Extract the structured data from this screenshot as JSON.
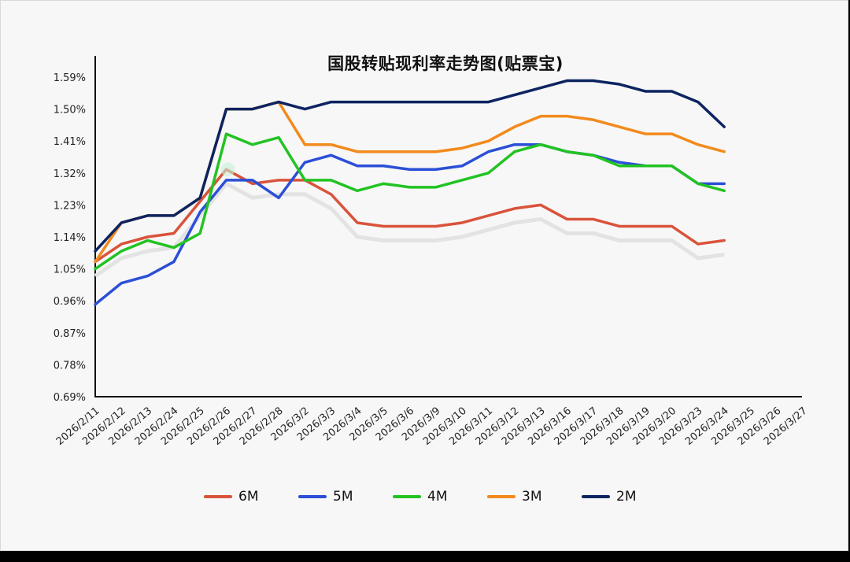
{
  "chart_data": {
    "type": "line",
    "title": "国股转贴现利率走势图(贴票宝)",
    "xlabel": "",
    "ylabel": "",
    "ylim": [
      0.69,
      1.59
    ],
    "yticks": [
      "1.59%",
      "1.50%",
      "1.41%",
      "1.32%",
      "1.23%",
      "1.14%",
      "1.05%",
      "0.96%",
      "0.87%",
      "0.78%",
      "0.69%"
    ],
    "grid": false,
    "legend_position": "bottom",
    "categories": [
      "2026/2/11",
      "2026/2/12",
      "2026/2/13",
      "2026/2/24",
      "2026/2/25",
      "2026/2/26",
      "2026/2/27",
      "2026/2/28",
      "2026/3/2",
      "2026/3/3",
      "2026/3/4",
      "2026/3/5",
      "2026/3/6",
      "2026/3/9",
      "2026/3/10",
      "2026/3/11",
      "2026/3/12",
      "2026/3/13",
      "2026/3/16",
      "2026/3/17",
      "2026/3/18",
      "2026/3/19",
      "2026/3/20",
      "2026/3/23",
      "2026/3/24",
      "2026/3/25",
      "2026/3/26",
      "2026/3/27"
    ],
    "series": [
      {
        "name": "6M",
        "color": "#d9533b",
        "values": [
          1.07,
          1.12,
          1.14,
          1.15,
          1.24,
          1.33,
          1.29,
          1.3,
          1.3,
          1.26,
          1.18,
          1.17,
          1.17,
          1.17,
          1.18,
          1.2,
          1.22,
          1.23,
          1.19,
          1.19,
          1.17,
          1.17,
          1.17,
          1.12,
          1.13,
          null,
          null,
          null
        ]
      },
      {
        "name": "5M",
        "color": "#2b4fd6",
        "values": [
          0.95,
          1.01,
          1.03,
          1.07,
          1.21,
          1.3,
          1.3,
          1.25,
          1.35,
          1.37,
          1.34,
          1.34,
          1.33,
          1.33,
          1.34,
          1.38,
          1.4,
          1.4,
          1.38,
          1.37,
          1.35,
          1.34,
          1.34,
          1.29,
          1.29,
          null,
          null,
          null
        ]
      },
      {
        "name": "4M",
        "color": "#22c322",
        "values": [
          1.05,
          1.1,
          1.13,
          1.11,
          1.15,
          1.43,
          1.4,
          1.42,
          1.3,
          1.3,
          1.27,
          1.29,
          1.28,
          1.28,
          1.3,
          1.32,
          1.38,
          1.4,
          1.38,
          1.37,
          1.34,
          1.34,
          1.34,
          1.29,
          1.27,
          null,
          null,
          null
        ]
      },
      {
        "name": "3M",
        "color": "#f28a1c",
        "values": [
          1.07,
          1.18,
          1.2,
          1.2,
          1.25,
          1.5,
          1.5,
          1.52,
          1.4,
          1.4,
          1.38,
          1.38,
          1.38,
          1.38,
          1.39,
          1.41,
          1.45,
          1.48,
          1.48,
          1.47,
          1.45,
          1.43,
          1.43,
          1.4,
          1.38,
          null,
          null,
          null
        ]
      },
      {
        "name": "2M",
        "color": "#0d2461",
        "values": [
          1.1,
          1.18,
          1.2,
          1.2,
          1.25,
          1.5,
          1.5,
          1.52,
          1.5,
          1.52,
          1.52,
          1.52,
          1.52,
          1.52,
          1.52,
          1.52,
          1.54,
          1.56,
          1.58,
          1.58,
          1.57,
          1.55,
          1.55,
          1.52,
          1.45,
          null,
          null,
          null
        ]
      }
    ]
  },
  "legend": {
    "items": [
      {
        "label": "6M",
        "color": "#d9533b"
      },
      {
        "label": "5M",
        "color": "#2b4fd6"
      },
      {
        "label": "4M",
        "color": "#22c322"
      },
      {
        "label": "3M",
        "color": "#f28a1c"
      },
      {
        "label": "2M",
        "color": "#0d2461"
      }
    ]
  }
}
